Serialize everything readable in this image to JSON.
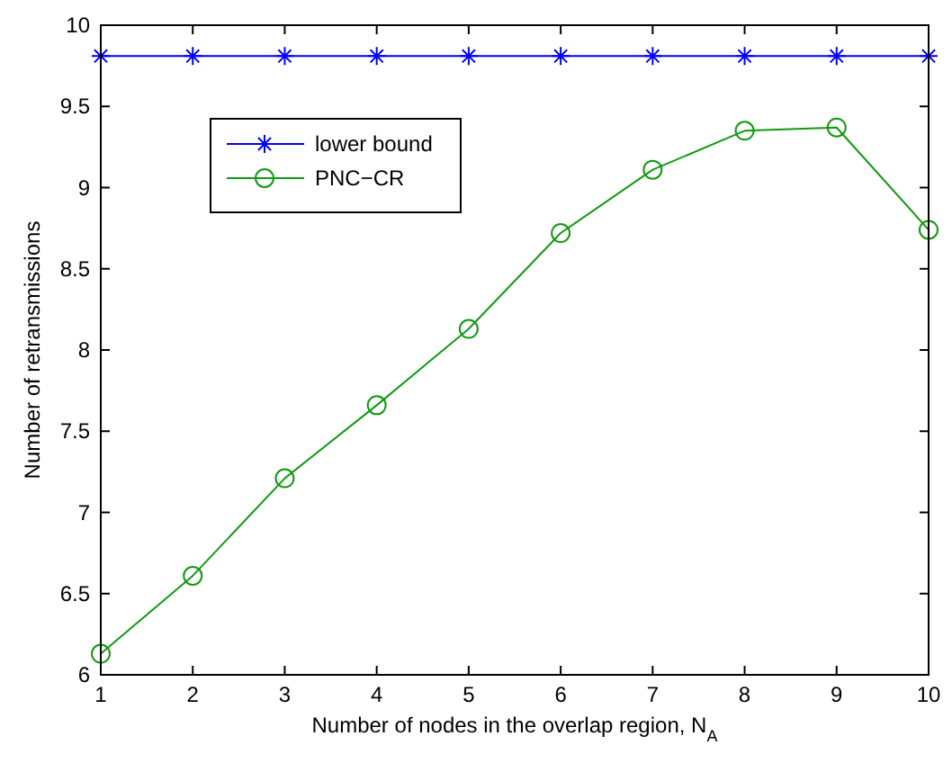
{
  "chart_data": {
    "type": "line",
    "xlabel": "Number of nodes in the overlap region, N$_{A}$",
    "ylabel": "Number of retransmissions",
    "x": [
      1,
      2,
      3,
      4,
      5,
      6,
      7,
      8,
      9,
      10
    ],
    "series": [
      {
        "name": "lower bound",
        "color": "#0000ff",
        "marker": "cross",
        "values": [
          9.81,
          9.81,
          9.81,
          9.81,
          9.81,
          9.81,
          9.81,
          9.81,
          9.81,
          9.81
        ]
      },
      {
        "name": "PNC−CR",
        "color": "#119911",
        "marker": "circle",
        "values": [
          6.13,
          6.61,
          7.21,
          7.66,
          8.13,
          8.72,
          9.11,
          9.35,
          9.37,
          8.74
        ]
      }
    ],
    "xlim": [
      1,
      10
    ],
    "xticks": [
      1,
      2,
      3,
      4,
      5,
      6,
      7,
      8,
      9,
      10
    ],
    "ylim": [
      6,
      10
    ],
    "yticks": [
      6,
      6.5,
      7,
      7.5,
      8,
      8.5,
      9,
      9.5,
      10
    ],
    "grid": false,
    "legend": "top left",
    "line_style": "solid"
  }
}
